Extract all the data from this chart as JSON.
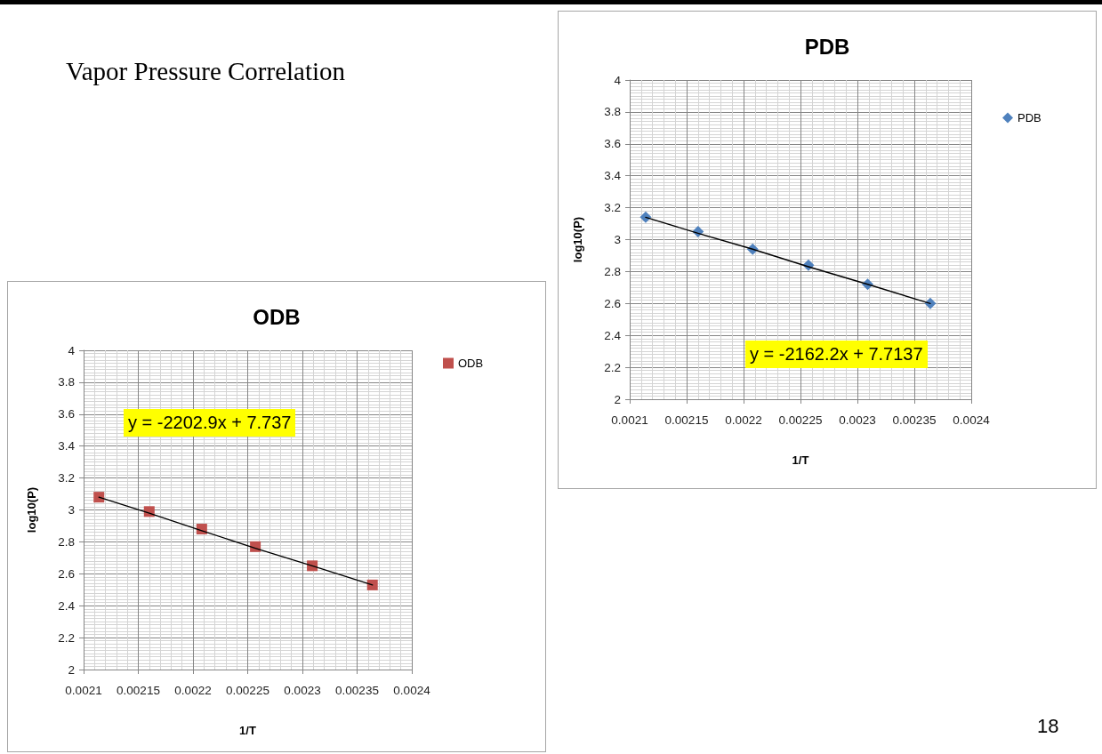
{
  "chart_data": [
    {
      "type": "scatter",
      "title": "PDB",
      "xlabel": "1/T",
      "ylabel": "log10(P)",
      "annotations": [
        "y = -2162.2x + 7.7137",
        "Vapor Pressure Correlation",
        "18"
      ],
      "x": [
        0.002114,
        0.00216,
        0.002208,
        0.002257,
        0.002309,
        0.002364
      ],
      "series": [
        {
          "name": "PDB",
          "color": "#4f81bd",
          "values": [
            3.14,
            3.05,
            2.94,
            2.84,
            2.72,
            2.6
          ]
        },
        {
          "type": "line",
          "color": "#000000",
          "values": [
            3.14,
            3.04,
            2.94,
            2.83,
            2.72,
            2.6
          ],
          "marker": "none"
        }
      ],
      "xlim": [
        0.0021,
        0.0024
      ],
      "xticks": [
        0.0021,
        0.00215,
        0.0022,
        0.00225,
        0.0023,
        0.00235,
        0.0024
      ],
      "ylim": [
        2,
        4
      ],
      "yticks": [
        2,
        2.2,
        2.4,
        2.6,
        2.8,
        3,
        3.2,
        3.4,
        3.6,
        3.8,
        4
      ],
      "grid": true,
      "legend": "top right",
      "marker": "diamond"
    },
    {
      "type": "scatter",
      "title": "ODB",
      "xlabel": "1/T",
      "ylabel": "log10(P)",
      "annotations": [
        "y = -2202.9x + 7.737"
      ],
      "x": [
        0.002114,
        0.00216,
        0.002208,
        0.002257,
        0.002309,
        0.002364
      ],
      "series": [
        {
          "name": "ODB",
          "color": "#c0504d",
          "values": [
            3.08,
            2.99,
            2.88,
            2.77,
            2.65,
            2.53
          ]
        },
        {
          "type": "line",
          "color": "#000000",
          "values": [
            3.08,
            2.98,
            2.87,
            2.76,
            2.65,
            2.53
          ],
          "marker": "none"
        }
      ],
      "xlim": [
        0.0021,
        0.0024
      ],
      "xticks": [
        0.0021,
        0.00215,
        0.0022,
        0.00225,
        0.0023,
        0.00235,
        0.0024
      ],
      "ylim": [
        2,
        4
      ],
      "yticks": [
        2,
        2.2,
        2.4,
        2.6,
        2.8,
        3,
        3.2,
        3.4,
        3.6,
        3.8,
        4
      ],
      "grid": true,
      "legend": "top right",
      "marker": "square"
    }
  ]
}
